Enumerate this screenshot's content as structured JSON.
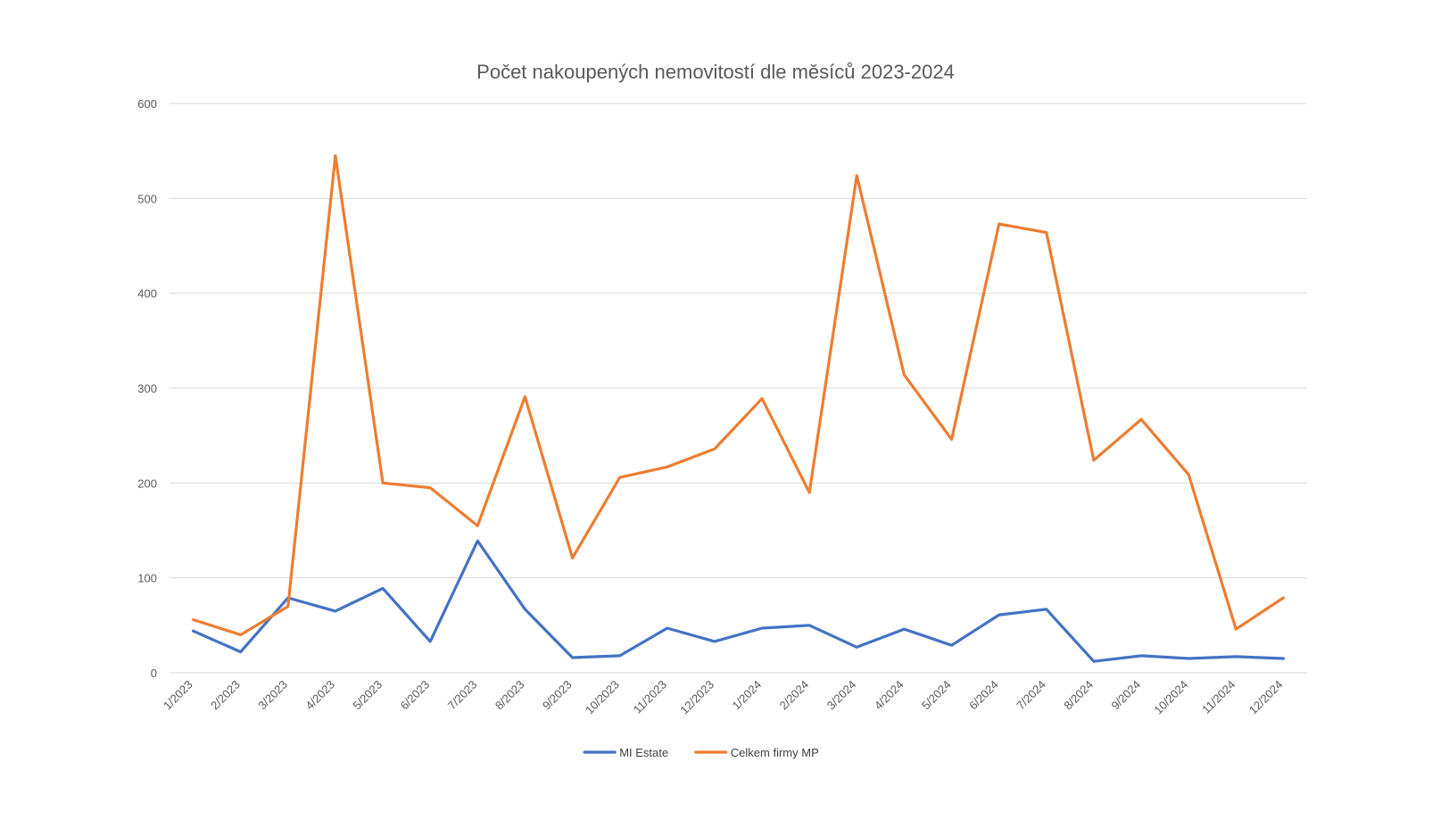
{
  "chart_data": {
    "type": "line",
    "title": "Počet nakoupených nemovitostí dle měsíců 2023-2024",
    "xlabel": "",
    "ylabel": "",
    "ylim": [
      0,
      600
    ],
    "yticks": [
      0,
      100,
      200,
      300,
      400,
      500,
      600
    ],
    "grid": true,
    "legend_position": "bottom",
    "categories": [
      "1/2023",
      "2/2023",
      "3/2023",
      "4/2023",
      "5/2023",
      "6/2023",
      "7/2023",
      "8/2023",
      "9/2023",
      "10/2023",
      "11/2023",
      "12/2023",
      "1/2024",
      "2/2024",
      "3/2024",
      "4/2024",
      "5/2024",
      "6/2024",
      "7/2024",
      "8/2024",
      "9/2024",
      "10/2024",
      "11/2024",
      "12/2024"
    ],
    "series": [
      {
        "name": "MI Estate",
        "color": "#4472c4",
        "values": [
          44,
          22,
          79,
          65,
          89,
          33,
          139,
          67,
          16,
          18,
          47,
          33,
          47,
          50,
          27,
          46,
          29,
          61,
          67,
          12,
          18,
          15,
          17,
          15
        ]
      },
      {
        "name": "Celkem firmy MP",
        "color": "#ed7d31",
        "values": [
          56,
          40,
          70,
          545,
          200,
          195,
          155,
          291,
          121,
          206,
          217,
          236,
          289,
          190,
          524,
          314,
          246,
          473,
          464,
          224,
          267,
          209,
          46,
          79
        ]
      }
    ]
  }
}
